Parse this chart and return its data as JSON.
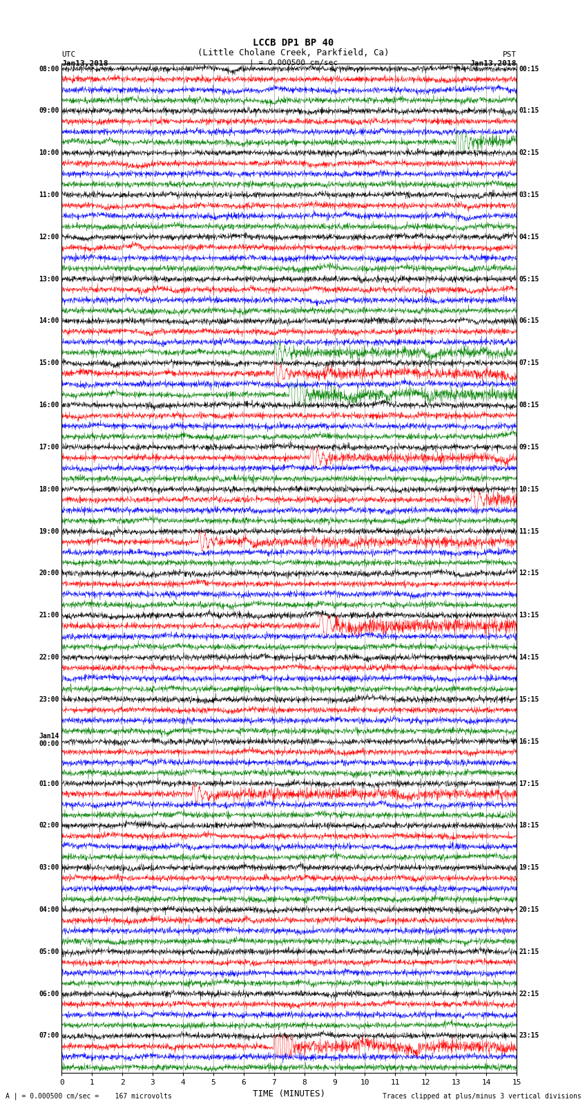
{
  "title_line1": "LCCB DP1 BP 40",
  "title_line2": "(Little Cholane Creek, Parkfield, Ca)",
  "scale_text": "| = 0.000500 cm/sec",
  "footer_left": "A | = 0.000500 cm/sec =    167 microvolts",
  "footer_right": "Traces clipped at plus/minus 3 vertical divisions",
  "xlabel": "TIME (MINUTES)",
  "label_utc": "UTC",
  "label_pst": "PST",
  "date_left_top": "Jan13,2018",
  "date_right_top": "Jan13,2018",
  "left_times": [
    "08:00",
    "",
    "",
    "",
    "09:00",
    "",
    "",
    "",
    "10:00",
    "",
    "",
    "",
    "11:00",
    "",
    "",
    "",
    "12:00",
    "",
    "",
    "",
    "13:00",
    "",
    "",
    "",
    "14:00",
    "",
    "",
    "",
    "15:00",
    "",
    "",
    "",
    "16:00",
    "",
    "",
    "",
    "17:00",
    "",
    "",
    "",
    "18:00",
    "",
    "",
    "",
    "19:00",
    "",
    "",
    "",
    "20:00",
    "",
    "",
    "",
    "21:00",
    "",
    "",
    "",
    "22:00",
    "",
    "",
    "",
    "23:00",
    "",
    "",
    "",
    "Jan14",
    "00:00",
    "",
    "",
    "",
    "01:00",
    "",
    "",
    "",
    "02:00",
    "",
    "",
    "",
    "03:00",
    "",
    "",
    "",
    "04:00",
    "",
    "",
    "",
    "05:00",
    "",
    "",
    "",
    "06:00",
    "",
    "",
    "",
    "07:00",
    ""
  ],
  "right_times": [
    "00:15",
    "",
    "",
    "",
    "01:15",
    "",
    "",
    "",
    "02:15",
    "",
    "",
    "",
    "03:15",
    "",
    "",
    "",
    "04:15",
    "",
    "",
    "",
    "05:15",
    "",
    "",
    "",
    "06:15",
    "",
    "",
    "",
    "07:15",
    "",
    "",
    "",
    "08:15",
    "",
    "",
    "",
    "09:15",
    "",
    "",
    "",
    "10:15",
    "",
    "",
    "",
    "11:15",
    "",
    "",
    "",
    "12:15",
    "",
    "",
    "",
    "13:15",
    "",
    "",
    "",
    "14:15",
    "",
    "",
    "",
    "15:15",
    "",
    "",
    "",
    "16:15",
    "",
    "",
    "",
    "17:15",
    "",
    "",
    "",
    "18:15",
    "",
    "",
    "",
    "19:15",
    "",
    "",
    "",
    "20:15",
    "",
    "",
    "",
    "21:15",
    "",
    "",
    "",
    "22:15",
    "",
    "",
    "",
    "23:15",
    ""
  ],
  "num_rows": 96,
  "colors_cycle": [
    "black",
    "red",
    "blue",
    "green"
  ],
  "bg_color": "white",
  "trace_amplitude": 0.35,
  "noise_amplitude": 0.12,
  "figsize": [
    8.5,
    16.13
  ],
  "dpi": 100,
  "xmin": 0,
  "xmax": 15,
  "xticks": [
    0,
    1,
    2,
    3,
    4,
    5,
    6,
    7,
    8,
    9,
    10,
    11,
    12,
    13,
    14,
    15
  ]
}
